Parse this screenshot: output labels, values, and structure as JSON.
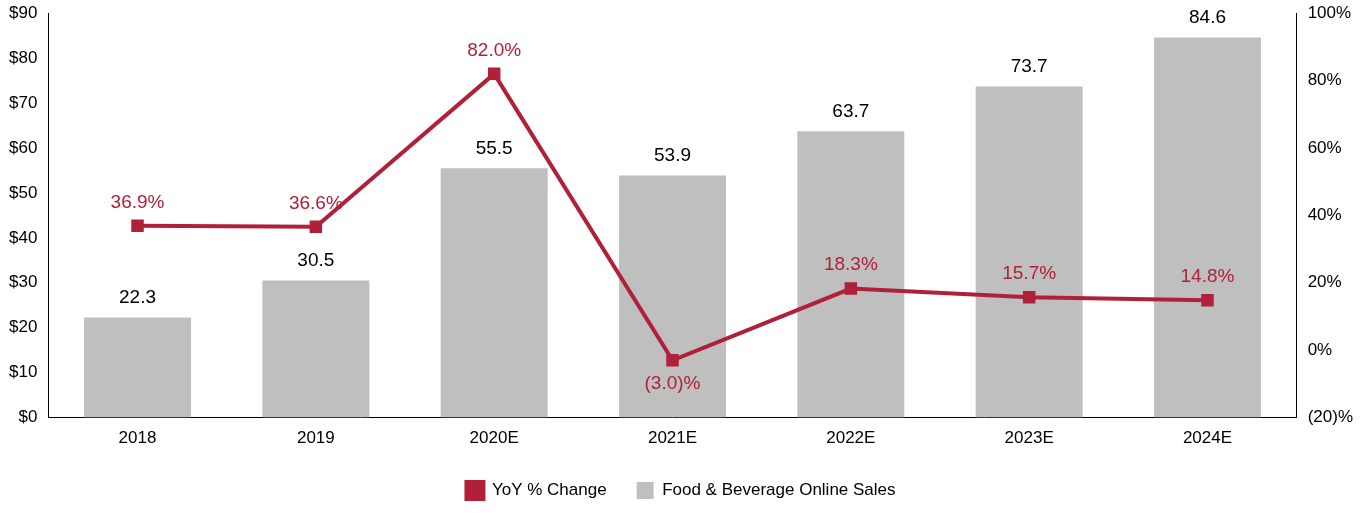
{
  "chart_data": {
    "type": "bar",
    "categories": [
      "2018",
      "2019",
      "2020E",
      "2021E",
      "2022E",
      "2023E",
      "2024E"
    ],
    "series": [
      {
        "name": "Food & Beverage Online Sales",
        "type": "bar",
        "color": "#bfbfbf",
        "values": [
          22.3,
          30.5,
          55.5,
          53.9,
          63.7,
          73.7,
          84.6
        ]
      },
      {
        "name": "YoY % Change",
        "type": "line",
        "axis": "y2",
        "color": "#b0203a",
        "marker": "square",
        "line_style": "solid",
        "values": [
          36.9,
          36.6,
          82.0,
          -3.0,
          18.3,
          15.7,
          14.8
        ],
        "value_labels": [
          "36.9%",
          "36.6%",
          "82.0%",
          "(3.0)%",
          "18.3%",
          "15.7%",
          "14.8%"
        ]
      }
    ],
    "ylim": [
      0,
      90
    ],
    "yticks": [
      {
        "value": 0,
        "label": "$0"
      },
      {
        "value": 10,
        "label": "$10"
      },
      {
        "value": 20,
        "label": "$20"
      },
      {
        "value": 30,
        "label": "$30"
      },
      {
        "value": 40,
        "label": "$40"
      },
      {
        "value": 50,
        "label": "$50"
      },
      {
        "value": 60,
        "label": "$60"
      },
      {
        "value": 70,
        "label": "$70"
      },
      {
        "value": 80,
        "label": "$80"
      },
      {
        "value": 90,
        "label": "$90"
      }
    ],
    "y2lim": [
      -20,
      100
    ],
    "y2ticks": [
      {
        "value": -20,
        "label": "(20)%"
      },
      {
        "value": 0,
        "label": "0%"
      },
      {
        "value": 20,
        "label": "20%"
      },
      {
        "value": 40,
        "label": "40%"
      },
      {
        "value": 60,
        "label": "60%"
      },
      {
        "value": 80,
        "label": "80%"
      },
      {
        "value": 100,
        "label": "100%"
      }
    ],
    "grid": false,
    "legend": "bottom",
    "data_labels": true
  }
}
